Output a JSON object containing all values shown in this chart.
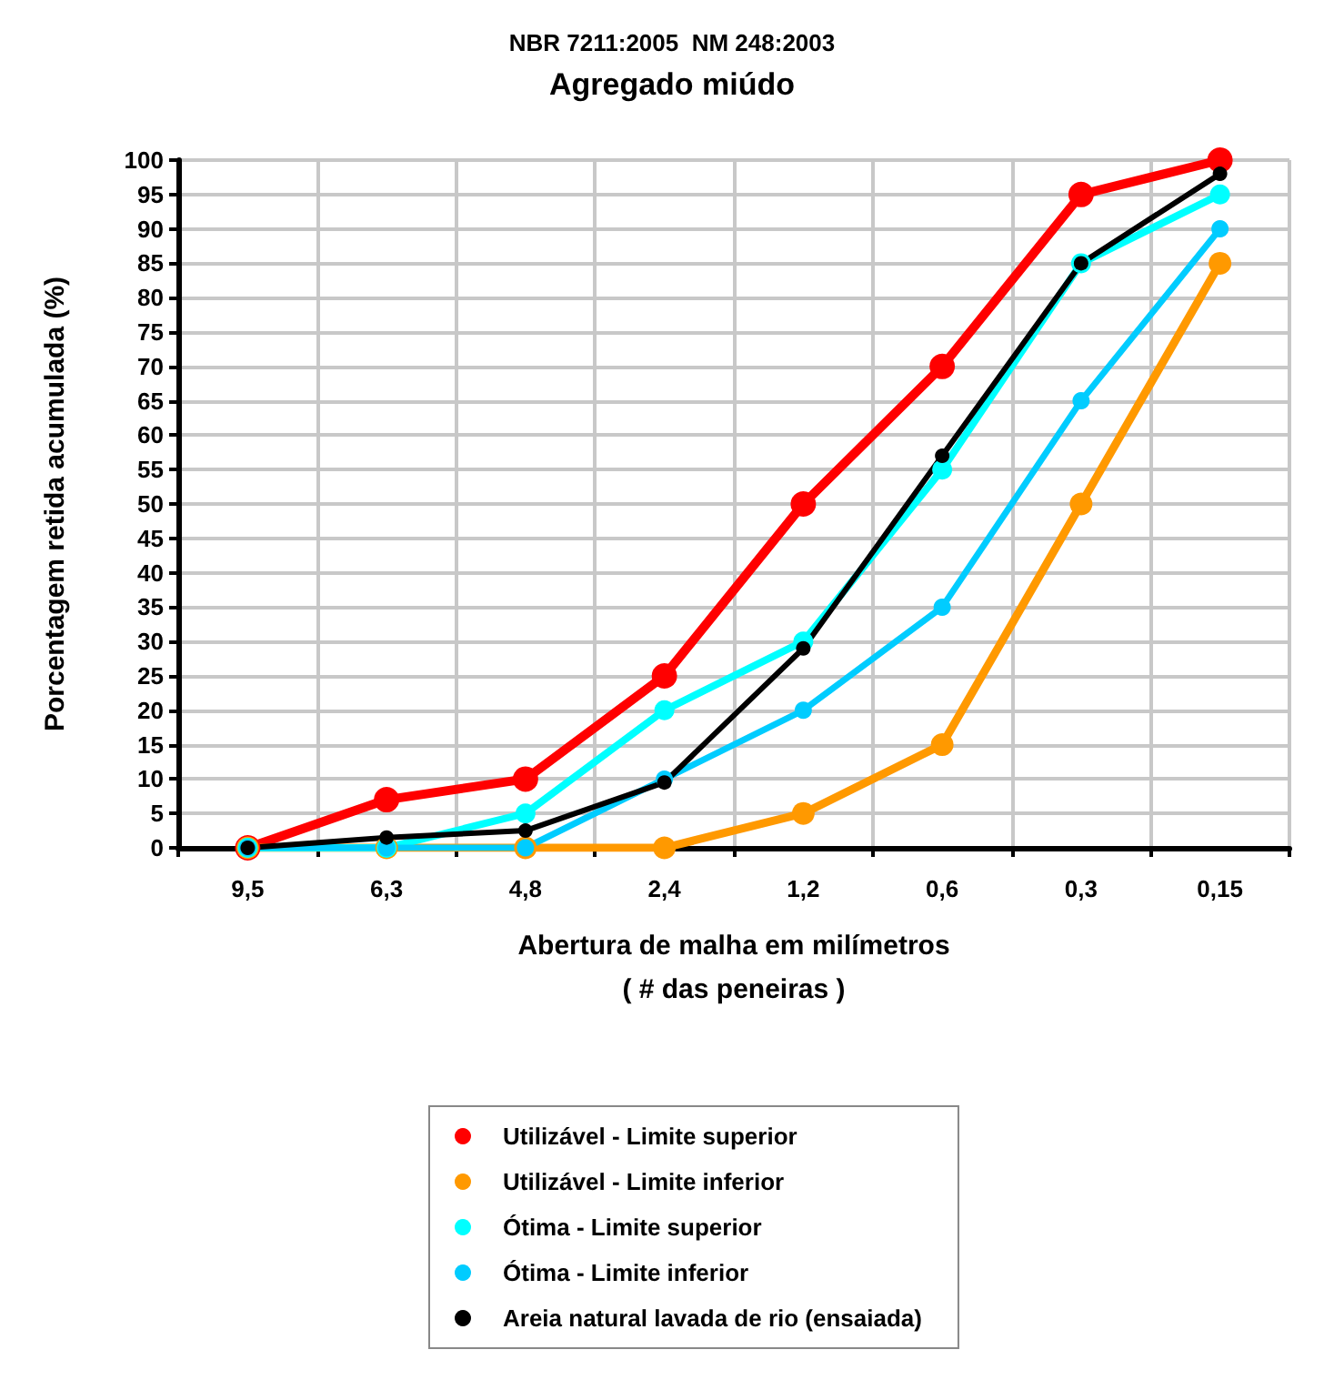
{
  "chart_data": {
    "type": "line",
    "title": "NBR 7211:2005  NM 248:2003",
    "subtitle": "Agregado miúdo",
    "xlabel": "Abertura de malha em milímetros\n( # das peneiras )",
    "ylabel": "Porcentagem retida acumulada (%)",
    "categories": [
      "9,5",
      "6,3",
      "4,8",
      "2,4",
      "1,2",
      "0,6",
      "0,3",
      "0,15"
    ],
    "series": [
      {
        "name": "Utilizável - Limite superior",
        "color": "#ff0000",
        "values": [
          0,
          7,
          10,
          25,
          50,
          70,
          95,
          100
        ]
      },
      {
        "name": "Utilizável - Limite inferior",
        "color": "#ff9900",
        "values": [
          0,
          0,
          0,
          0,
          5,
          15,
          50,
          85
        ]
      },
      {
        "name": "Ótima - Limite superior",
        "color": "#00ffff",
        "values": [
          0,
          0,
          5,
          20,
          30,
          55,
          85,
          95
        ]
      },
      {
        "name": "Ótima - Limite inferior",
        "color": "#00ccff",
        "values": [
          0,
          0,
          0,
          10,
          20,
          35,
          65,
          90
        ]
      },
      {
        "name": "Areia natural lavada de rio (ensaiada)",
        "color": "#000000",
        "values": [
          0,
          1.5,
          2.5,
          9.5,
          29,
          57,
          85,
          98
        ]
      }
    ],
    "ylim": [
      0,
      100
    ],
    "yticks": [
      0,
      5,
      10,
      15,
      20,
      25,
      30,
      35,
      40,
      45,
      50,
      55,
      60,
      65,
      70,
      75,
      80,
      85,
      90,
      95,
      100
    ],
    "grid": true,
    "legend": "bottom",
    "marker": "circle",
    "line_style": "solid"
  }
}
